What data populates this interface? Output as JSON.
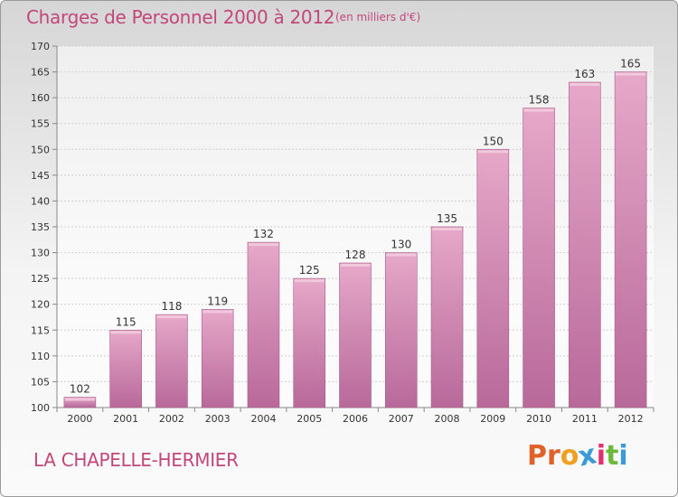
{
  "header": {
    "title": "Charges de Personnel 2000 à 2012",
    "unit_note": "(en milliers d'€)"
  },
  "footer": {
    "town": "LA CHAPELLE-HERMIER",
    "brand_letters": [
      "P",
      "r",
      "o",
      "x",
      "i",
      "t",
      "i"
    ]
  },
  "colors": {
    "title": "#c2477a",
    "bar": "#d98fb6",
    "brand": [
      "#e0622b",
      "#e0622b",
      "#f0a020",
      "#3a9ad8",
      "#e03070",
      "#6cb83a",
      "#3a9ad8"
    ]
  },
  "chart_data": {
    "type": "bar",
    "categories": [
      "2000",
      "2001",
      "2002",
      "2003",
      "2004",
      "2005",
      "2006",
      "2007",
      "2008",
      "2009",
      "2010",
      "2011",
      "2012"
    ],
    "values": [
      102,
      115,
      118,
      119,
      132,
      125,
      128,
      130,
      135,
      150,
      158,
      163,
      165
    ],
    "ylim": [
      100,
      170
    ],
    "yticks": [
      100,
      105,
      110,
      115,
      120,
      125,
      130,
      135,
      140,
      145,
      150,
      155,
      160,
      165,
      170
    ],
    "grid": true
  }
}
